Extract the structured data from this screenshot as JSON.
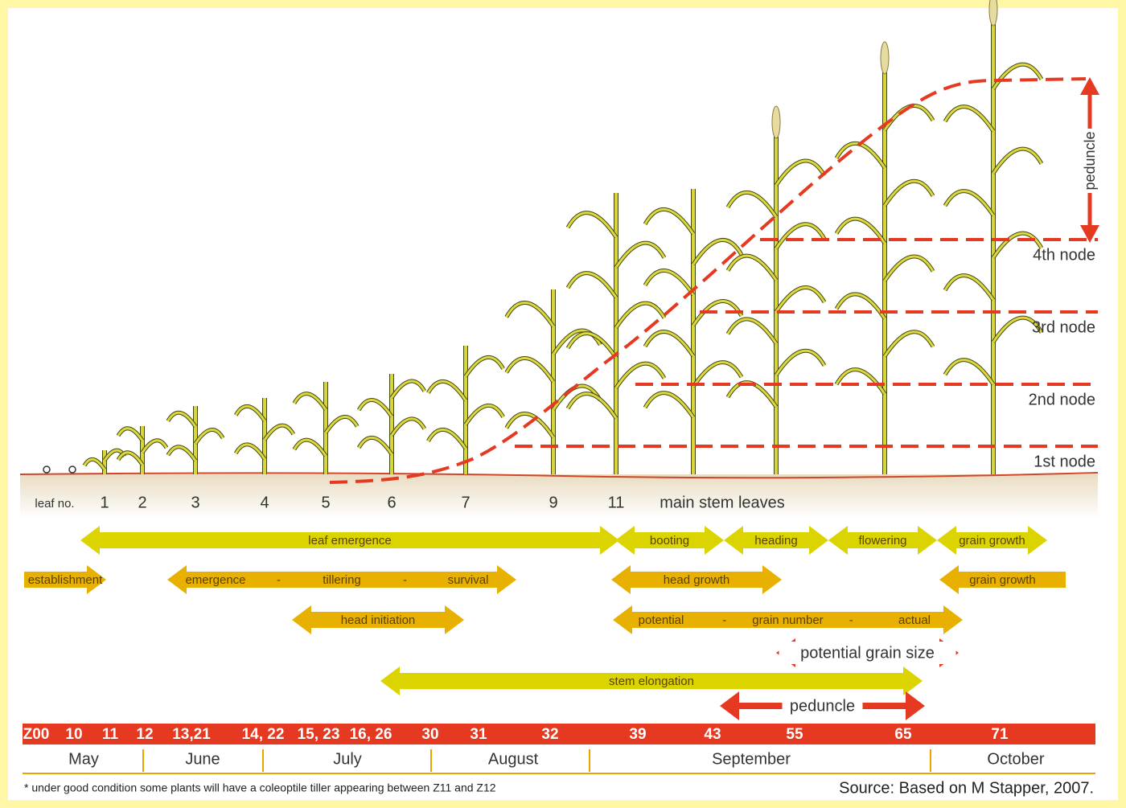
{
  "leaf_axis": {
    "label": "leaf no.",
    "numbers": [
      "1",
      "2",
      "3",
      "4",
      "5",
      "6",
      "7",
      "9",
      "11"
    ],
    "caption": "main stem leaves"
  },
  "nodes": [
    "4th node",
    "3rd node",
    "2nd node",
    "1st node"
  ],
  "peduncle_label": "peduncle",
  "phases": [
    {
      "parts": [
        "leaf emergence"
      ]
    },
    {
      "parts": [
        "booting"
      ]
    },
    {
      "parts": [
        "heading"
      ]
    },
    {
      "parts": [
        "flowering"
      ]
    },
    {
      "parts": [
        "grain growth"
      ]
    },
    {
      "parts": [
        "establishment"
      ]
    },
    {
      "parts": [
        "emergence",
        "-",
        "tillering",
        "-",
        "survival"
      ]
    },
    {
      "parts": [
        "head growth"
      ]
    },
    {
      "parts": [
        "grain growth"
      ]
    },
    {
      "parts": [
        "head initiation"
      ]
    },
    {
      "parts": [
        "potential",
        "-",
        "grain number",
        "-",
        "actual"
      ]
    },
    {
      "parts": [
        "potential grain size"
      ]
    },
    {
      "parts": [
        "stem elongation"
      ]
    },
    {
      "parts": [
        "peduncle"
      ]
    }
  ],
  "zadoks": [
    "Z00",
    "10",
    "11",
    "12",
    "13,21",
    "14, 22",
    "15, 23",
    "16, 26",
    "30",
    "31",
    "32",
    "39",
    "43",
    "55",
    "65",
    "71"
  ],
  "months": [
    "May",
    "June",
    "July",
    "August",
    "September",
    "October"
  ],
  "footnote": "* under good condition some plants will have a coleoptile tiller appearing between Z11 and Z12",
  "source": "Source: Based on M Stapper, 2007."
}
